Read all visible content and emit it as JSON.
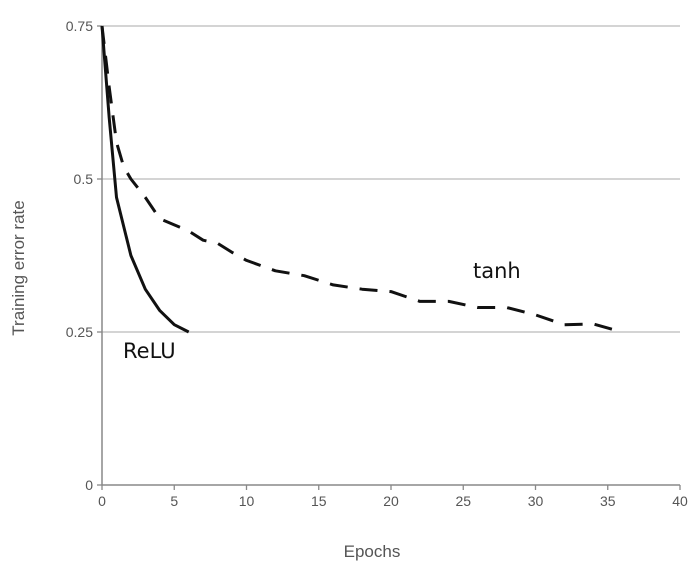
{
  "chart_data": {
    "type": "line",
    "title": "",
    "xlabel": "Epochs",
    "ylabel": "Training error rate",
    "xlim": [
      0,
      40
    ],
    "ylim": [
      0,
      0.75
    ],
    "x_ticks": [
      0,
      5,
      10,
      15,
      20,
      25,
      30,
      35,
      40
    ],
    "x_tick_labels": [
      "0",
      "5",
      "10",
      "15",
      "20",
      "25",
      "30",
      "35",
      "40"
    ],
    "y_ticks": [
      0,
      0.25,
      0.5,
      0.75
    ],
    "y_tick_labels": [
      "0",
      "0.25",
      "0.5",
      "0.75"
    ],
    "grid": "horizontal",
    "legend": "none (series labeled inline)",
    "series": [
      {
        "name": "ReLU",
        "style": "solid",
        "color": "#111111",
        "x": [
          0,
          0.5,
          1,
          2,
          3,
          4,
          5,
          6
        ],
        "y": [
          0.75,
          0.6,
          0.47,
          0.375,
          0.32,
          0.285,
          0.262,
          0.25
        ]
      },
      {
        "name": "tanh",
        "style": "dashed",
        "color": "#111111",
        "x": [
          0,
          0.5,
          1,
          1.5,
          2,
          3,
          4,
          5,
          6,
          7,
          8,
          9,
          10,
          12,
          14,
          16,
          18,
          20,
          22,
          24,
          26,
          28,
          30,
          32,
          34,
          36
        ],
        "y": [
          0.75,
          0.65,
          0.56,
          0.52,
          0.5,
          0.47,
          0.435,
          0.425,
          0.415,
          0.4,
          0.395,
          0.38,
          0.367,
          0.35,
          0.342,
          0.327,
          0.32,
          0.316,
          0.3,
          0.3,
          0.29,
          0.29,
          0.278,
          0.262,
          0.263,
          0.25
        ]
      }
    ]
  }
}
